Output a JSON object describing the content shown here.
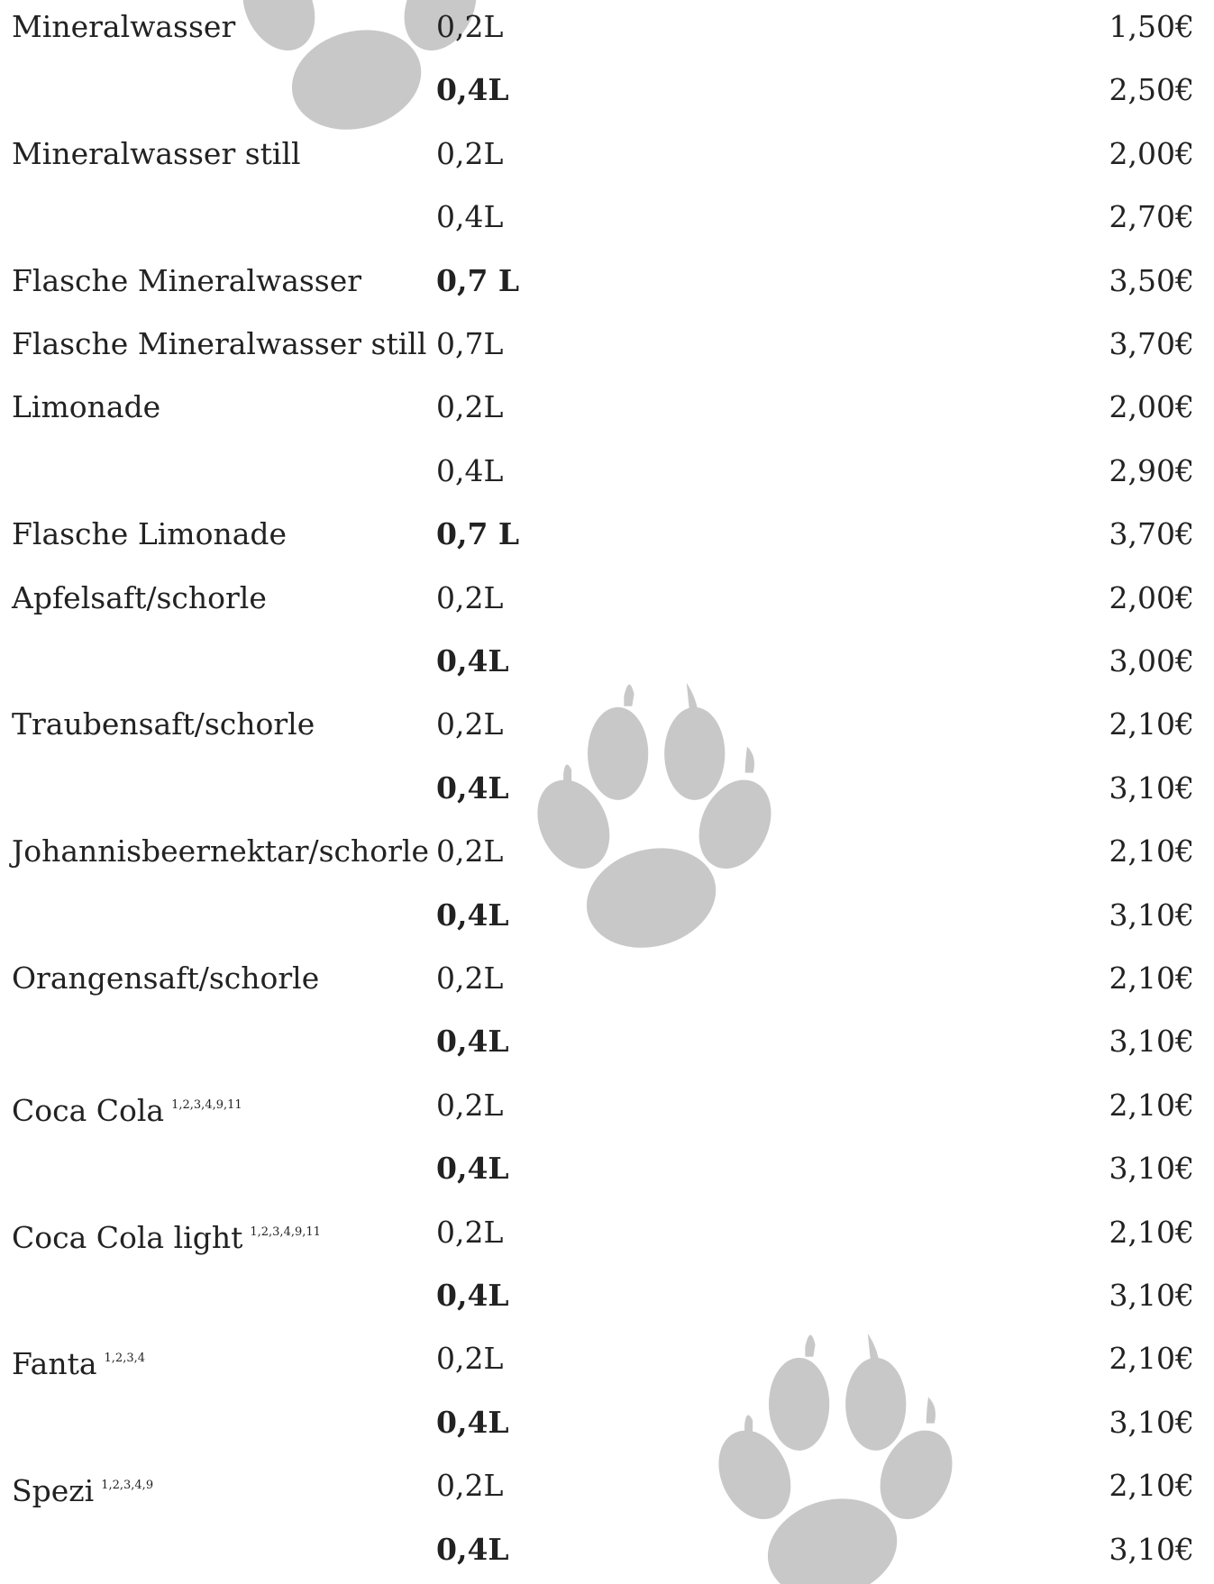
{
  "menu": {
    "rows": [
      {
        "name": "Mineralwasser",
        "size": "0,2L",
        "price": "1,50€",
        "bold": false
      },
      {
        "size": "0,4L",
        "price": "2,50€",
        "bold": true
      },
      {
        "name": "Mineralwasser still",
        "size": "0,2L",
        "price": "2,00€",
        "bold": false
      },
      {
        "size": "0,4L",
        "price": "2,70€",
        "bold": false
      },
      {
        "name": "Flasche Mineralwasser",
        "size": "0,7 L",
        "price": "3,50€",
        "bold": true
      },
      {
        "name": "Flasche Mineralwasser still",
        "size": "0,7L",
        "price": "3,70€",
        "bold": false
      },
      {
        "name": "Limonade",
        "size": "0,2L",
        "price": "2,00€",
        "bold": false
      },
      {
        "size": "0,4L",
        "price": "2,90€",
        "bold": false
      },
      {
        "name": "Flasche Limonade",
        "size": "0,7 L",
        "price": "3,70€",
        "bold": true
      },
      {
        "name": "Apfelsaft/schorle",
        "size": "0,2L",
        "price": "2,00€",
        "bold": false
      },
      {
        "size": "0,4L",
        "price": "3,00€",
        "bold": true
      },
      {
        "name": "Traubensaft/schorle",
        "size": "0,2L",
        "price": "2,10€",
        "bold": false
      },
      {
        "size": "0,4L",
        "price": "3,10€",
        "bold": true
      },
      {
        "name": "Johannisbeernektar/schorle",
        "size": "0,2L",
        "price": "2,10€",
        "bold": false
      },
      {
        "size": "0,4L",
        "price": "3,10€",
        "bold": true
      },
      {
        "name": "Orangensaft/schorle",
        "size": "0,2L",
        "price": "2,10€",
        "bold": false
      },
      {
        "size": "0,4L",
        "price": "3,10€",
        "bold": true
      },
      {
        "name": "Coca Cola",
        "note": "1,2,3,4,9,11",
        "size": "0,2L",
        "price": "2,10€",
        "bold": false
      },
      {
        "size": "0,4L",
        "price": "3,10€",
        "bold": true
      },
      {
        "name": "Coca Cola light",
        "note": "1,2,3,4,9,11",
        "size": "0,2L",
        "price": "2,10€",
        "bold": false
      },
      {
        "size": "0,4L",
        "price": "3,10€",
        "bold": true
      },
      {
        "name": "Fanta",
        "note": "1,2,3,4",
        "size": "0,2L",
        "price": "2,10€",
        "bold": false
      },
      {
        "size": "0,4L",
        "price": "3,10€",
        "bold": true
      },
      {
        "name": "Spezi",
        "note": "1,2,3,4,9",
        "size": "0,2L",
        "price": "2,10€",
        "bold": false
      },
      {
        "size": "0,4L",
        "price": "3,10€",
        "bold": true
      }
    ]
  }
}
